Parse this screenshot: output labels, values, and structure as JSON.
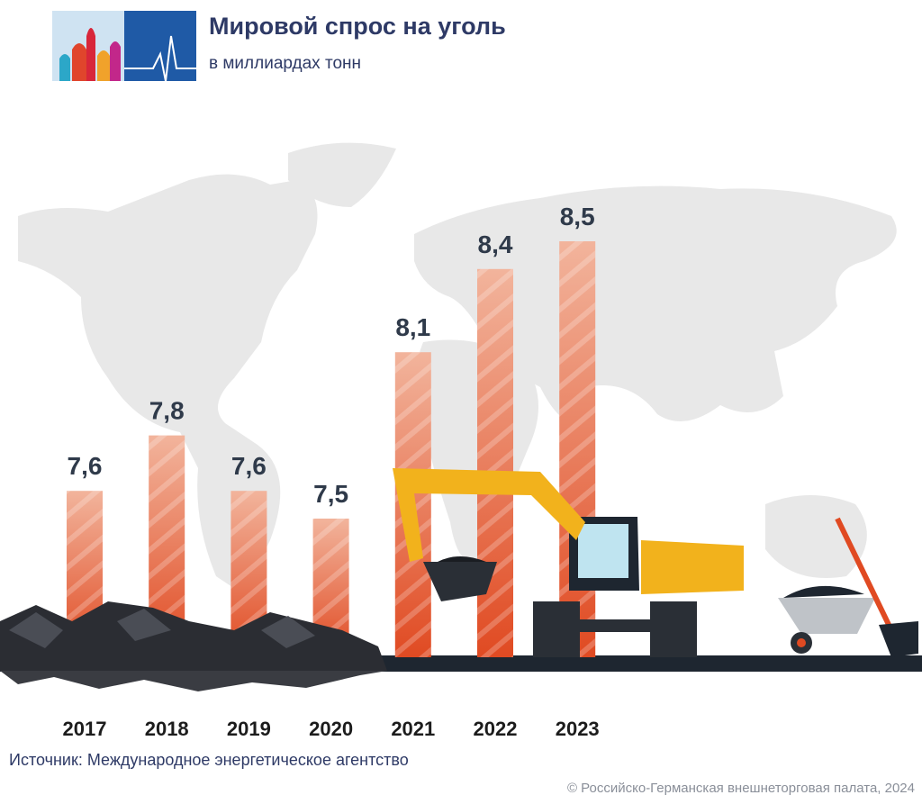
{
  "chart_data": {
    "type": "bar",
    "title": "Мировой спрос на уголь",
    "subtitle": "в миллиардах тонн",
    "categories": [
      "2017",
      "2018",
      "2019",
      "2020",
      "2021",
      "2022",
      "2023"
    ],
    "values": [
      7.6,
      7.8,
      7.6,
      7.5,
      8.1,
      8.4,
      8.5
    ],
    "value_labels": [
      "7,6",
      "7,8",
      "7,6",
      "7,5",
      "8,1",
      "8,4",
      "8,5"
    ],
    "color": "#e04a22",
    "ylim": [
      7,
      8.5
    ],
    "source": "Источник: Международное энергетическое агентство",
    "copyright": "© Российско-Германская внешнеторговая палата, 2024"
  }
}
